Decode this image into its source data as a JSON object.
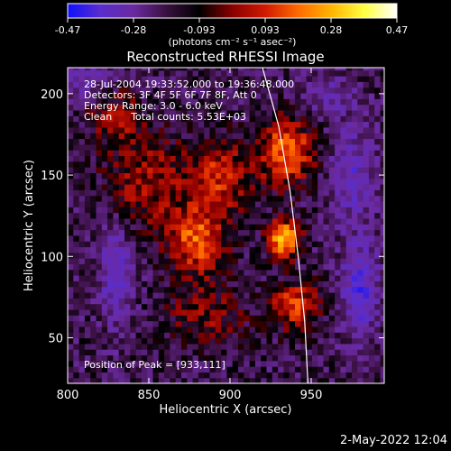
{
  "colorbar": {
    "ticks": [
      "-0.47",
      "-0.28",
      "-0.093",
      "0.093",
      "0.28",
      "0.47"
    ],
    "range": [
      -0.47,
      0.47
    ],
    "units": "(photons cm⁻² s⁻¹ asec⁻²)",
    "colors": [
      "#1010ff",
      "#5a2dcc",
      "#6a2aa0",
      "#3a1040",
      "#000000",
      "#8a0000",
      "#d01a00",
      "#ff6a00",
      "#ffb400",
      "#ffff40",
      "#ffffff"
    ]
  },
  "chart_data": {
    "type": "heatmap",
    "title": "Reconstructed RHESSI Image",
    "xlabel": "Heliocentric X (arcsec)",
    "ylabel": "Heliocentric Y (arcsec)",
    "xlim": [
      800,
      995
    ],
    "ylim": [
      22,
      216
    ],
    "x_ticks": [
      800,
      850,
      900,
      950
    ],
    "y_ticks": [
      50,
      100,
      150,
      200
    ],
    "annotations": [
      "28-Jul-2004 19:33:52.000 to 19:36:48.000",
      "Detectors: 3F 4F 5F 6F 7F 8F, Att 0",
      "Energy Range: 3.0 - 6.0 keV",
      "Clean      Total counts: 5.53E+03"
    ],
    "peak_label": "Position of Peak = [933,111]",
    "peak": {
      "x": 933,
      "y": 111
    },
    "limb_curve": [
      [
        920,
        216
      ],
      [
        930,
        180
      ],
      [
        937,
        140
      ],
      [
        942,
        100
      ],
      [
        946,
        60
      ],
      [
        948,
        22
      ]
    ],
    "sources": [
      {
        "x": 933,
        "y": 111,
        "value": 0.47,
        "sx": 7,
        "sy": 8
      },
      {
        "x": 935,
        "y": 165,
        "value": 0.34,
        "sx": 12,
        "sy": 14
      },
      {
        "x": 880,
        "y": 110,
        "value": 0.32,
        "sx": 12,
        "sy": 14
      },
      {
        "x": 895,
        "y": 150,
        "value": 0.24,
        "sx": 14,
        "sy": 16
      },
      {
        "x": 940,
        "y": 70,
        "value": 0.3,
        "sx": 10,
        "sy": 10
      },
      {
        "x": 850,
        "y": 145,
        "value": 0.2,
        "sx": 18,
        "sy": 20
      },
      {
        "x": 830,
        "y": 185,
        "value": 0.16,
        "sx": 12,
        "sy": 12
      },
      {
        "x": 885,
        "y": 65,
        "value": 0.15,
        "sx": 18,
        "sy": 14
      }
    ],
    "negative_regions": [
      {
        "x": 830,
        "y": 90,
        "value": -0.2,
        "sx": 7,
        "sy": 22
      },
      {
        "x": 980,
        "y": 80,
        "value": -0.25,
        "sx": 8,
        "sy": 20
      },
      {
        "x": 975,
        "y": 150,
        "value": -0.18,
        "sx": 10,
        "sy": 20
      },
      {
        "x": 810,
        "y": 210,
        "value": -0.15,
        "sx": 10,
        "sy": 8
      },
      {
        "x": 960,
        "y": 200,
        "value": -0.12,
        "sx": 12,
        "sy": 10
      }
    ]
  },
  "footer": {
    "timestamp": "2-May-2022 12:04"
  }
}
